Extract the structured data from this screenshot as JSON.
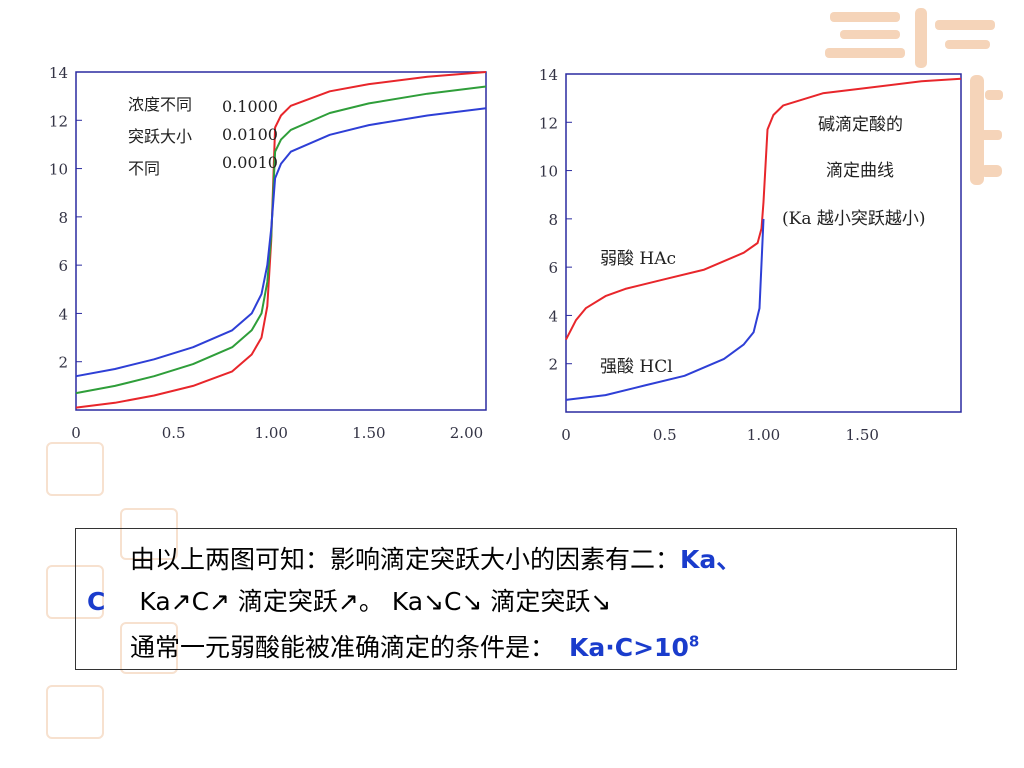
{
  "chart_data": [
    {
      "type": "line",
      "xlim": [
        0,
        2.1
      ],
      "ylim": [
        0,
        14
      ],
      "x_ticks": [
        "0",
        "0.5",
        "1.00",
        "1.50",
        "2.00"
      ],
      "x_tick_values": [
        0,
        0.5,
        1.0,
        1.5,
        2.0
      ],
      "y_ticks": [
        "2",
        "4",
        "6",
        "8",
        "10",
        "12",
        "14"
      ],
      "y_tick_values": [
        2,
        4,
        6,
        8,
        10,
        12,
        14
      ],
      "legend_labels": [
        "浓度不同",
        "突跃大小",
        "不同"
      ],
      "legend_values": [
        "0.1000",
        "0.0100",
        "0.0010"
      ],
      "series": [
        {
          "color": "#e8262b",
          "x": [
            0,
            0.2,
            0.4,
            0.6,
            0.8,
            0.9,
            0.95,
            0.98,
            1.0,
            1.02,
            1.05,
            1.1,
            1.3,
            1.5,
            1.8,
            2.1
          ],
          "y": [
            0.1,
            0.3,
            0.6,
            1.0,
            1.6,
            2.3,
            3.0,
            4.3,
            7.0,
            11.7,
            12.2,
            12.6,
            13.2,
            13.5,
            13.8,
            14.0
          ]
        },
        {
          "color": "#2f9e3a",
          "x": [
            0,
            0.2,
            0.4,
            0.6,
            0.8,
            0.9,
            0.95,
            0.98,
            1.0,
            1.02,
            1.05,
            1.1,
            1.3,
            1.5,
            1.8,
            2.1
          ],
          "y": [
            0.7,
            1.0,
            1.4,
            1.9,
            2.6,
            3.3,
            4.0,
            5.3,
            7.2,
            10.7,
            11.2,
            11.6,
            12.3,
            12.7,
            13.1,
            13.4
          ]
        },
        {
          "color": "#2e3fd6",
          "x": [
            0,
            0.2,
            0.4,
            0.6,
            0.8,
            0.9,
            0.95,
            0.98,
            1.0,
            1.02,
            1.05,
            1.1,
            1.3,
            1.5,
            1.8,
            2.1
          ],
          "y": [
            1.4,
            1.7,
            2.1,
            2.6,
            3.3,
            4.0,
            4.8,
            6.0,
            7.5,
            9.6,
            10.2,
            10.7,
            11.4,
            11.8,
            12.2,
            12.5
          ]
        }
      ]
    },
    {
      "type": "line",
      "xlim": [
        0,
        2.0
      ],
      "ylim": [
        0,
        14
      ],
      "x_ticks": [
        "0",
        "0.5",
        "1.00",
        "1.50"
      ],
      "x_tick_values": [
        0,
        0.5,
        1.0,
        1.5
      ],
      "y_ticks": [
        "2",
        "4",
        "6",
        "8",
        "10",
        "12",
        "14"
      ],
      "y_tick_values": [
        2,
        4,
        6,
        8,
        10,
        12,
        14
      ],
      "annotations": [
        "碱滴定酸的",
        "滴定曲线",
        "(Ka 越小突跃越小)"
      ],
      "series": [
        {
          "name": "弱酸 HAc",
          "color": "#e8262b",
          "x": [
            0,
            0.05,
            0.1,
            0.2,
            0.3,
            0.5,
            0.7,
            0.9,
            0.97,
            0.99,
            1.0,
            1.02,
            1.05,
            1.1,
            1.3,
            1.5,
            1.8,
            2.0
          ],
          "y": [
            3.0,
            3.8,
            4.3,
            4.8,
            5.1,
            5.5,
            5.9,
            6.6,
            7.0,
            7.6,
            8.7,
            11.7,
            12.3,
            12.7,
            13.2,
            13.4,
            13.7,
            13.8
          ]
        },
        {
          "name": "强酸 HCl",
          "color": "#2e3fd6",
          "x": [
            0,
            0.2,
            0.4,
            0.6,
            0.8,
            0.9,
            0.95,
            0.98,
            1.0
          ],
          "y": [
            0.5,
            0.7,
            1.1,
            1.5,
            2.2,
            2.8,
            3.3,
            4.3,
            8.0
          ]
        }
      ]
    }
  ],
  "text": {
    "line1_main": "由以上两图可知：影响滴定突跃大小的因素有二：",
    "line1_blue": "Ka、",
    "line2_blue": "C",
    "line2_main": "Ka↗C↗ 滴定突跃↗。 Ka↘C↘ 滴定突跃↘",
    "line3_main": "通常一元弱酸能被准确滴定的条件是：",
    "line3_blue": "Ka·C>10",
    "line3_sup": "8"
  }
}
